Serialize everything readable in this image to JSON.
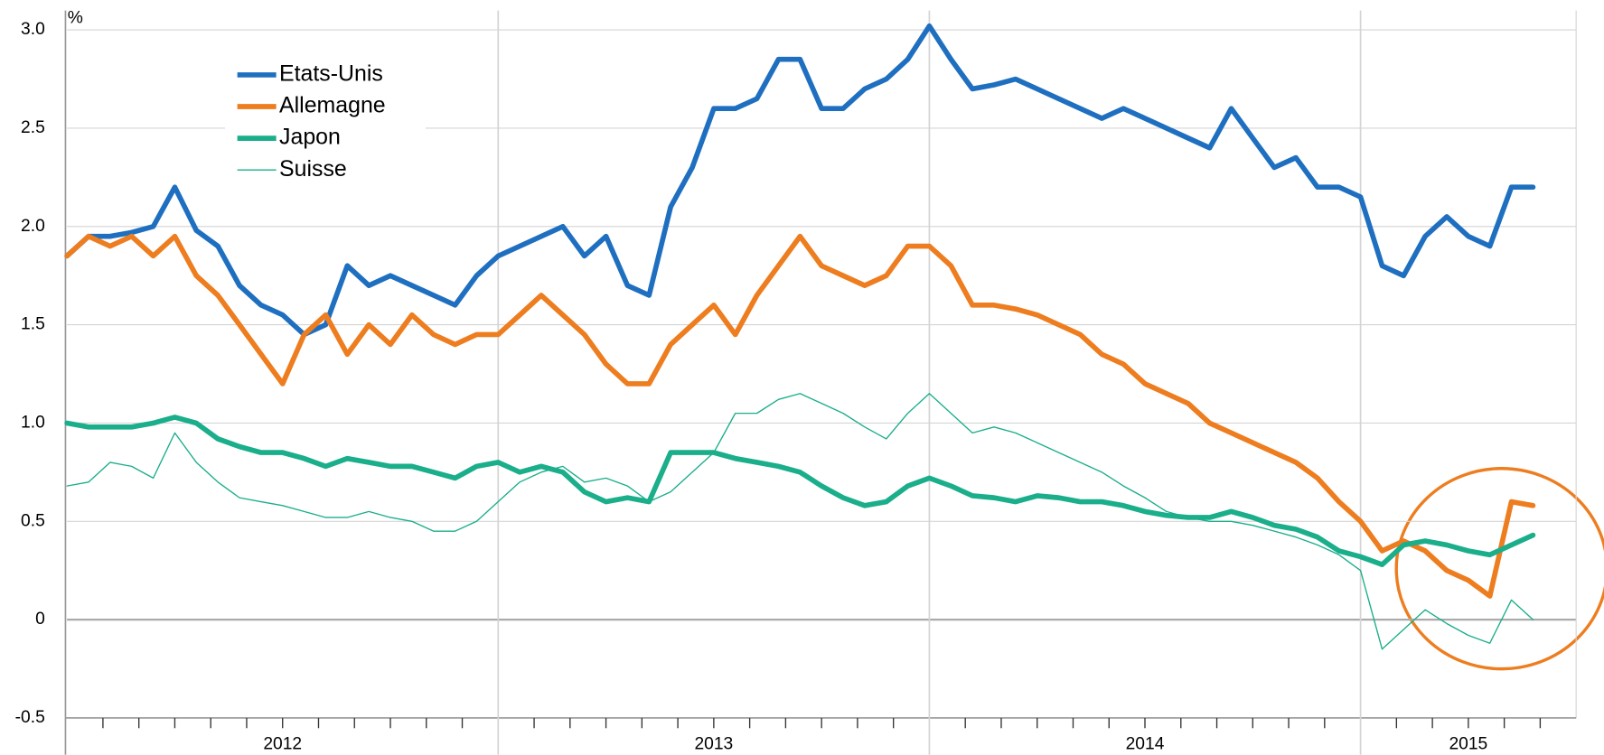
{
  "chart_data": {
    "type": "line",
    "y_label": "%",
    "xlim": [
      2012,
      2015.5
    ],
    "xticks": [
      {
        "value": 2012,
        "label": "2012"
      },
      {
        "value": 2013,
        "label": "2013"
      },
      {
        "value": 2014,
        "label": "2014"
      },
      {
        "value": 2015,
        "label": "2015"
      }
    ],
    "ylim": [
      -0.5,
      3.0
    ],
    "yticks": [
      -0.5,
      0,
      0.5,
      {
        "value": 1,
        "label": "1.0"
      },
      1.5,
      {
        "value": 2,
        "label": "2.0"
      },
      2.5,
      {
        "value": 3,
        "label": "3.0"
      }
    ],
    "grid": true,
    "legend": "upper left",
    "x": [
      2012.0,
      2012.05,
      2012.1,
      2012.15,
      2012.2,
      2012.25,
      2012.3,
      2012.35,
      2012.4,
      2012.45,
      2012.5,
      2012.55,
      2012.6,
      2012.65,
      2012.7,
      2012.75,
      2012.8,
      2012.85,
      2012.9,
      2012.95,
      2013.0,
      2013.05,
      2013.1,
      2013.15,
      2013.2,
      2013.25,
      2013.3,
      2013.35,
      2013.4,
      2013.45,
      2013.5,
      2013.55,
      2013.6,
      2013.65,
      2013.7,
      2013.75,
      2013.8,
      2013.85,
      2013.9,
      2013.95,
      2014.0,
      2014.05,
      2014.1,
      2014.15,
      2014.2,
      2014.25,
      2014.3,
      2014.35,
      2014.4,
      2014.45,
      2014.5,
      2014.55,
      2014.6,
      2014.65,
      2014.7,
      2014.75,
      2014.8,
      2014.85,
      2014.9,
      2014.95,
      2015.0,
      2015.05,
      2015.1,
      2015.15,
      2015.2,
      2015.25,
      2015.3,
      2015.35,
      2015.4
    ],
    "series": [
      {
        "name": "Etats-Unis",
        "color": "#1f6fc0",
        "width": 5,
        "values": [
          1.85,
          1.95,
          1.95,
          1.97,
          2.0,
          2.2,
          1.98,
          1.9,
          1.7,
          1.6,
          1.55,
          1.45,
          1.5,
          1.8,
          1.7,
          1.75,
          1.7,
          1.65,
          1.6,
          1.75,
          1.85,
          1.9,
          1.95,
          2.0,
          1.85,
          1.95,
          1.7,
          1.65,
          2.1,
          2.3,
          2.6,
          2.6,
          2.65,
          2.85,
          2.85,
          2.6,
          2.6,
          2.7,
          2.75,
          2.85,
          3.02,
          2.85,
          2.7,
          2.72,
          2.75,
          2.7,
          2.65,
          2.6,
          2.55,
          2.6,
          2.55,
          2.5,
          2.45,
          2.4,
          2.6,
          2.45,
          2.3,
          2.35,
          2.2,
          2.2,
          2.15,
          1.8,
          1.75,
          1.95,
          2.05,
          1.95,
          1.9,
          2.2,
          2.2
        ]
      },
      {
        "name": "Allemagne",
        "color": "#ed7d1f",
        "width": 5,
        "values": [
          1.85,
          1.95,
          1.9,
          1.95,
          1.85,
          1.95,
          1.75,
          1.65,
          1.5,
          1.35,
          1.2,
          1.45,
          1.55,
          1.35,
          1.5,
          1.4,
          1.55,
          1.45,
          1.4,
          1.45,
          1.45,
          1.55,
          1.65,
          1.55,
          1.45,
          1.3,
          1.2,
          1.2,
          1.4,
          1.5,
          1.6,
          1.45,
          1.65,
          1.8,
          1.95,
          1.8,
          1.75,
          1.7,
          1.75,
          1.9,
          1.9,
          1.8,
          1.6,
          1.6,
          1.58,
          1.55,
          1.5,
          1.45,
          1.35,
          1.3,
          1.2,
          1.15,
          1.1,
          1.0,
          0.95,
          0.9,
          0.85,
          0.8,
          0.72,
          0.6,
          0.5,
          0.35,
          0.4,
          0.35,
          0.25,
          0.2,
          0.12,
          0.6,
          0.58
        ]
      },
      {
        "name": "Japon",
        "color": "#1aae8a",
        "width": 5,
        "values": [
          1.0,
          0.98,
          0.98,
          0.98,
          1.0,
          1.03,
          1.0,
          0.92,
          0.88,
          0.85,
          0.85,
          0.82,
          0.78,
          0.82,
          0.8,
          0.78,
          0.78,
          0.75,
          0.72,
          0.78,
          0.8,
          0.75,
          0.78,
          0.75,
          0.65,
          0.6,
          0.62,
          0.6,
          0.85,
          0.85,
          0.85,
          0.82,
          0.8,
          0.78,
          0.75,
          0.68,
          0.62,
          0.58,
          0.6,
          0.68,
          0.72,
          0.68,
          0.63,
          0.62,
          0.6,
          0.63,
          0.62,
          0.6,
          0.6,
          0.58,
          0.55,
          0.53,
          0.52,
          0.52,
          0.55,
          0.52,
          0.48,
          0.46,
          0.42,
          0.35,
          0.32,
          0.28,
          0.38,
          0.4,
          0.38,
          0.35,
          0.33,
          0.38,
          0.43
        ]
      },
      {
        "name": "Suisse",
        "color": "#1aae8a",
        "width": 1.2,
        "values": [
          0.68,
          0.7,
          0.8,
          0.78,
          0.72,
          0.95,
          0.8,
          0.7,
          0.62,
          0.6,
          0.58,
          0.55,
          0.52,
          0.52,
          0.55,
          0.52,
          0.5,
          0.45,
          0.45,
          0.5,
          0.6,
          0.7,
          0.75,
          0.78,
          0.7,
          0.72,
          0.68,
          0.6,
          0.65,
          0.75,
          0.85,
          1.05,
          1.05,
          1.12,
          1.15,
          1.1,
          1.05,
          0.98,
          0.92,
          1.05,
          1.15,
          1.05,
          0.95,
          0.98,
          0.95,
          0.9,
          0.85,
          0.8,
          0.75,
          0.68,
          0.62,
          0.55,
          0.52,
          0.5,
          0.5,
          0.48,
          0.45,
          0.42,
          0.38,
          0.33,
          0.25,
          -0.15,
          -0.05,
          0.05,
          -0.02,
          -0.08,
          -0.12,
          0.1,
          0.0
        ]
      }
    ]
  }
}
